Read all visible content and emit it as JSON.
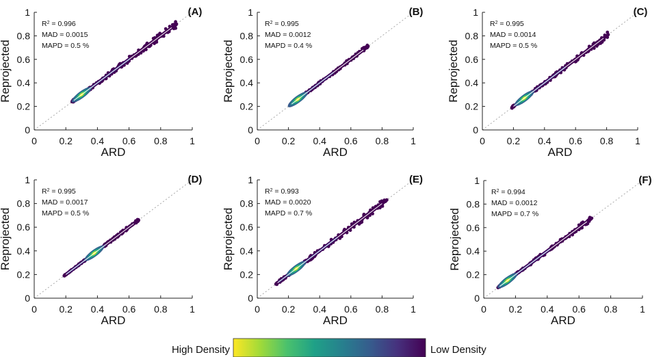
{
  "colors": {
    "cloud": "#440154",
    "cloud_mid": "#3b2a7e",
    "fit_line": "#ffffff",
    "identity_line": "#a8a8a8",
    "axis": "#222222",
    "colormap": [
      "#fde725",
      "#a0da39",
      "#4ac16d",
      "#1fa187",
      "#277f8e",
      "#365c8d",
      "#46327e",
      "#440154"
    ]
  },
  "legend": {
    "high_label": "High Density",
    "low_label": "Low Density"
  },
  "chart_data": [
    {
      "id": "A",
      "panel_label": "(A)",
      "type": "scatter",
      "xlabel": "ARD",
      "ylabel": "Reprojected",
      "xlim": [
        0,
        1
      ],
      "ylim": [
        0,
        1
      ],
      "xticks": [
        "0",
        "0.2",
        "0.4",
        "0.6",
        "0.8",
        "1"
      ],
      "yticks": [
        "0",
        "0.2",
        "0.4",
        "0.6",
        "0.8",
        "1"
      ],
      "stats": {
        "r2_value": "= 0.996",
        "mad": "MAD = 0.0015",
        "mapd": "MAPD = 0.5 %"
      },
      "x_range": [
        0.24,
        0.9
      ],
      "spread": 0.035,
      "density_peak": [
        0.3,
        0.3
      ]
    },
    {
      "id": "B",
      "panel_label": "(B)",
      "type": "scatter",
      "xlabel": "ARD",
      "ylabel": "Reprojected",
      "xlim": [
        0,
        1
      ],
      "ylim": [
        0,
        1
      ],
      "xticks": [
        "0",
        "0.2",
        "0.4",
        "0.6",
        "0.8",
        "1"
      ],
      "yticks": [
        "0",
        "0.2",
        "0.4",
        "0.6",
        "0.8",
        "1"
      ],
      "stats": {
        "r2_value": "= 0.995",
        "mad": "MAD = 0.0012",
        "mapd": "MAPD = 0.4 %"
      },
      "x_range": [
        0.21,
        0.71
      ],
      "spread": 0.02,
      "density_peak": [
        0.26,
        0.26
      ]
    },
    {
      "id": "C",
      "panel_label": "(C)",
      "type": "scatter",
      "xlabel": "ARD",
      "ylabel": "Reprojected",
      "xlim": [
        0,
        1
      ],
      "ylim": [
        0,
        1
      ],
      "xticks": [
        "0",
        "0.2",
        "0.4",
        "0.6",
        "0.8",
        "1"
      ],
      "yticks": [
        "0",
        "0.2",
        "0.4",
        "0.6",
        "0.8",
        "1"
      ],
      "stats": {
        "r2_value": "= 0.995",
        "mad": "MAD = 0.0014",
        "mapd": "MAPD = 0.5 %"
      },
      "x_range": [
        0.19,
        0.81
      ],
      "spread": 0.028,
      "density_peak": [
        0.27,
        0.27
      ]
    },
    {
      "id": "D",
      "panel_label": "(D)",
      "type": "scatter",
      "xlabel": "ARD",
      "ylabel": "Reprojected",
      "xlim": [
        0,
        1
      ],
      "ylim": [
        0,
        1
      ],
      "xticks": [
        "0",
        "0.2",
        "0.4",
        "0.6",
        "0.8",
        "1"
      ],
      "yticks": [
        "0",
        "0.2",
        "0.4",
        "0.6",
        "0.8",
        "1"
      ],
      "stats": {
        "r2_value": "= 0.995",
        "mad": "MAD = 0.0017",
        "mapd": "MAPD = 0.5 %"
      },
      "x_range": [
        0.19,
        0.66
      ],
      "spread": 0.015,
      "density_peak": [
        0.38,
        0.38
      ]
    },
    {
      "id": "E",
      "panel_label": "(E)",
      "type": "scatter",
      "xlabel": "ARD",
      "ylabel": "Reprojected",
      "xlim": [
        0,
        1
      ],
      "ylim": [
        0,
        1
      ],
      "xticks": [
        "0",
        "0.2",
        "0.4",
        "0.6",
        "0.8",
        "1"
      ],
      "yticks": [
        "0",
        "0.2",
        "0.4",
        "0.6",
        "0.8",
        "1"
      ],
      "stats": {
        "r2_value": "= 0.993",
        "mad": "MAD = 0.0020",
        "mapd": "MAPD = 0.7 %"
      },
      "x_range": [
        0.12,
        0.83
      ],
      "spread": 0.035,
      "density_peak": [
        0.25,
        0.25
      ]
    },
    {
      "id": "F",
      "panel_label": "(F)",
      "type": "scatter",
      "xlabel": "ARD",
      "ylabel": "Reprojected",
      "xlim": [
        0,
        1
      ],
      "ylim": [
        0,
        1
      ],
      "xticks": [
        "0",
        "0.2",
        "0.4",
        "0.6",
        "0.8",
        "1"
      ],
      "yticks": [
        "0",
        "0.2",
        "0.4",
        "0.6",
        "0.8",
        "1"
      ],
      "stats": {
        "r2_value": "= 0.994",
        "mad": "MAD = 0.0012",
        "mapd": "MAPD = 0.7 %"
      },
      "x_range": [
        0.09,
        0.68
      ],
      "spread": 0.025,
      "density_peak": [
        0.15,
        0.15
      ]
    }
  ]
}
